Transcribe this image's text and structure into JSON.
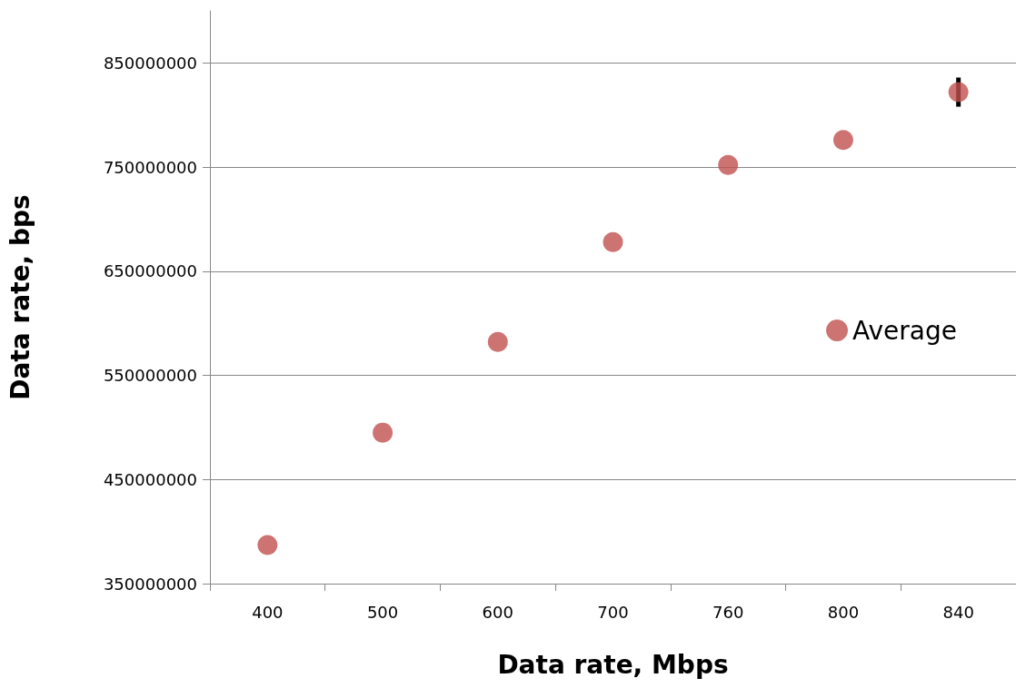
{
  "chart_data": {
    "type": "scatter",
    "xlabel": "Data rate, Mbps",
    "ylabel": "Data rate, bps",
    "categories": [
      "400",
      "500",
      "600",
      "700",
      "760",
      "800",
      "840"
    ],
    "series": [
      {
        "name": "Average",
        "color": "#c0504d",
        "values": [
          387000000,
          495000000,
          582000000,
          678000000,
          752000000,
          776000000,
          822000000
        ],
        "errors": [
          null,
          null,
          null,
          null,
          null,
          null,
          14000000
        ]
      }
    ],
    "ylim": [
      350000000,
      900000000
    ],
    "yticks": [
      350000000,
      450000000,
      550000000,
      650000000,
      750000000,
      850000000
    ],
    "grid": "y",
    "legend": "right",
    "marker": "circle"
  }
}
